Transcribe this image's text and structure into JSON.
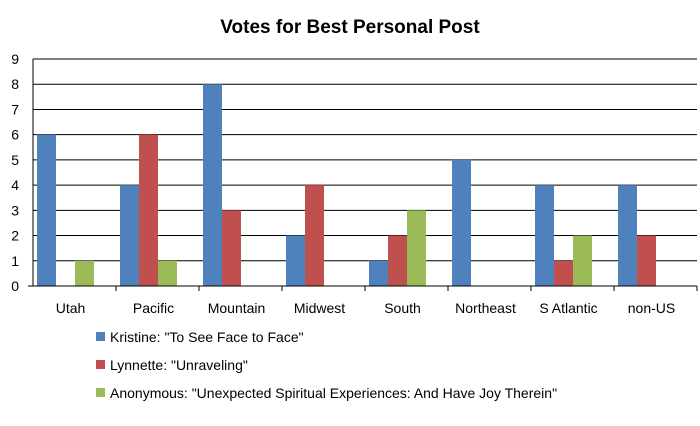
{
  "chart_data": {
    "type": "bar",
    "title": "Votes for Best Personal Post",
    "xlabel": "",
    "ylabel": "",
    "ylim": [
      0,
      9
    ],
    "yticks": [
      "0",
      "1",
      "2",
      "3",
      "4",
      "5",
      "6",
      "7",
      "8",
      "9"
    ],
    "grid": true,
    "legend_position": "bottom",
    "categories": [
      "Utah",
      "Pacific",
      "Mountain",
      "Midwest",
      "South",
      "Northeast",
      "S Atlantic",
      "non-US"
    ],
    "series": [
      {
        "name": "Kristine: \"To See Face to Face\"",
        "color": "#4F81BD",
        "values": [
          6,
          4,
          8,
          2,
          1,
          5,
          4,
          4
        ]
      },
      {
        "name": "Lynnette: \"Unraveling\"",
        "color": "#C0504D",
        "values": [
          0,
          6,
          3,
          4,
          2,
          0,
          1,
          2
        ]
      },
      {
        "name": "Anonymous: \"Unexpected Spiritual Experiences:  And Have Joy Therein\"",
        "color": "#9BBB59",
        "values": [
          1,
          1,
          0,
          0,
          3,
          0,
          2,
          0
        ]
      }
    ]
  }
}
